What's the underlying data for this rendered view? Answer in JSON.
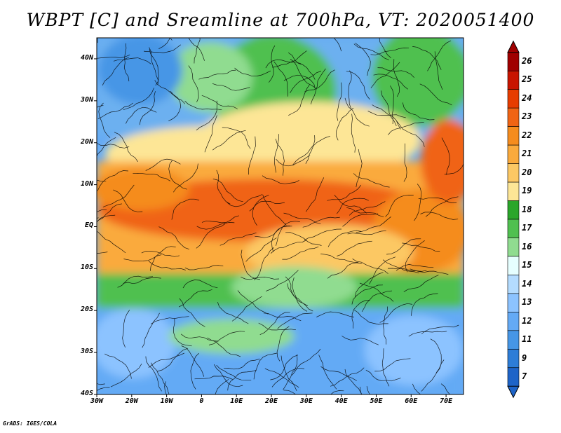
{
  "title": "WBPT [C] and Sreamline at 700hPa, VT: 2020051400",
  "credit": "GrADS: IGES/COLA",
  "lat_ticks": [
    "40N",
    "30N",
    "20N",
    "10N",
    "EQ",
    "10S",
    "20S",
    "30S",
    "40S"
  ],
  "lon_ticks": [
    "30W",
    "20W",
    "10W",
    "0",
    "10E",
    "20E",
    "30E",
    "40E",
    "50E",
    "60E",
    "70E"
  ],
  "extent": {
    "lon": [
      -30,
      75
    ],
    "lat": [
      -40,
      45
    ]
  },
  "colorbar": {
    "labels": [
      "26",
      "25",
      "24",
      "23",
      "22",
      "21",
      "20",
      "19",
      "18",
      "17",
      "16",
      "15",
      "14",
      "13",
      "12",
      "11",
      "9",
      "7"
    ],
    "colors": [
      "#a00000",
      "#c81400",
      "#e63c00",
      "#f06414",
      "#f58c1e",
      "#faaa3c",
      "#fcc864",
      "#fde696",
      "#2aa62a",
      "#50c050",
      "#90dc90",
      "#e6ffff",
      "#b4dcff",
      "#8cc3ff",
      "#64aaf5",
      "#4696e6",
      "#2d7dd7",
      "#1e64c8"
    ]
  }
}
